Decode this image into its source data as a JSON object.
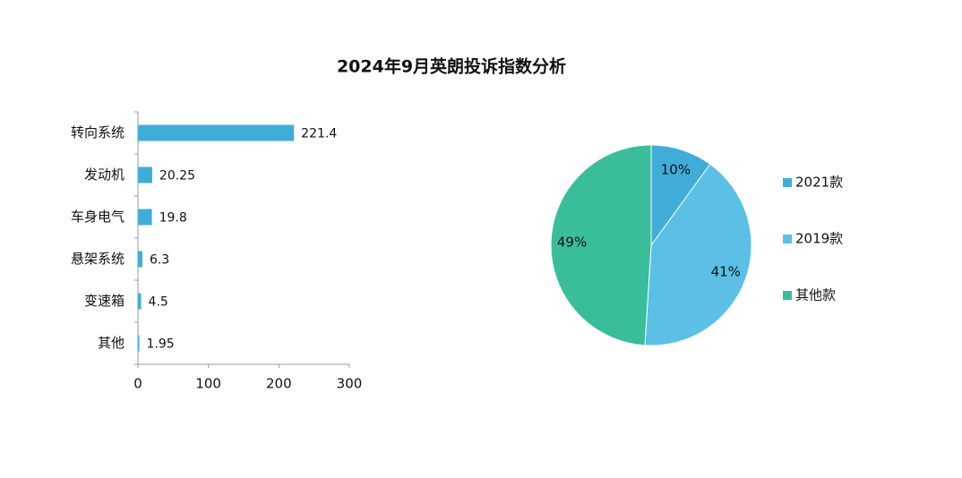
{
  "title": "2024年9月英朗投诉指数分析",
  "chart_data": [
    {
      "type": "hbar",
      "categories": [
        "转向系统",
        "发动机",
        "车身电气",
        "悬架系统",
        "变速箱",
        "其他"
      ],
      "values": [
        221.4,
        20.25,
        19.8,
        6.3,
        4.5,
        1.95
      ],
      "color": "#3fadd8",
      "xlim": [
        0,
        300
      ],
      "xticks": [
        0,
        100,
        200,
        300
      ]
    },
    {
      "type": "pie",
      "categories": [
        "2021款",
        "2019款",
        "其他款"
      ],
      "values": [
        10,
        41,
        49
      ],
      "value_labels": [
        "10%",
        "41%",
        "49%"
      ],
      "colors": [
        "#3fadd8",
        "#5bbfe6",
        "#39bd9a"
      ],
      "legend": "right"
    }
  ]
}
